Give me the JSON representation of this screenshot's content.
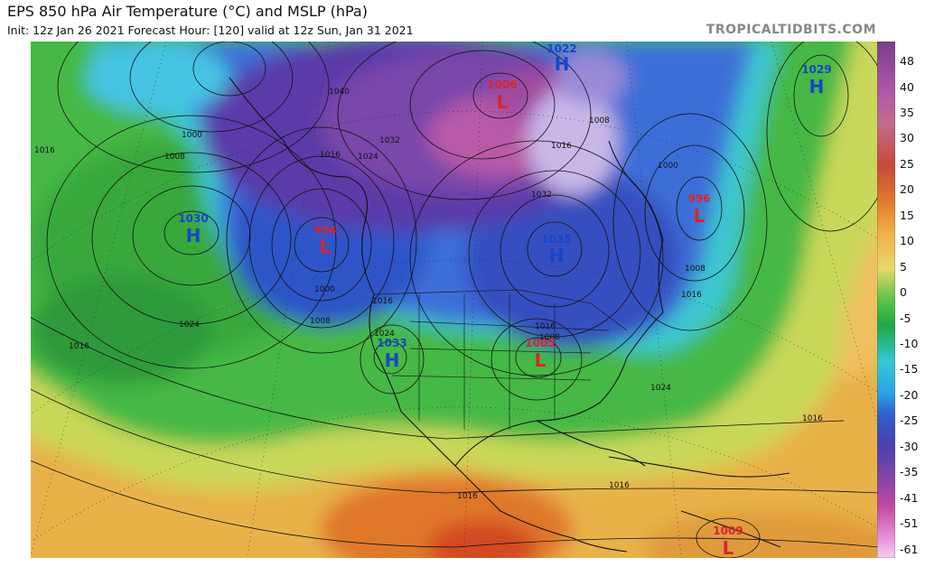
{
  "header": {
    "title": "EPS 850 hPa Air Temperature (°C) and MSLP (hPa)",
    "subtitle": "Init: 12z Jan 26 2021   Forecast Hour: [120]   valid at 12z Sun, Jan 31 2021",
    "brand": "TROPICALTIDBITS.COM"
  },
  "colorbar": {
    "unit": "°C",
    "ticks": [
      "48",
      "40",
      "35",
      "30",
      "25",
      "20",
      "15",
      "10",
      "5",
      "0",
      "-5",
      "-10",
      "-15",
      "-20",
      "-25",
      "-30",
      "-35",
      "-41",
      "-51",
      "-61"
    ],
    "colors": [
      "#8a3f8f",
      "#b05aa8",
      "#c26b8a",
      "#c84a3a",
      "#d8662c",
      "#e88b30",
      "#f2b450",
      "#f3d36a",
      "#b7d665",
      "#5cc34a",
      "#1fa846",
      "#34c2c0",
      "#2aa4e6",
      "#2d72d8",
      "#3d46b8",
      "#5a3aa6",
      "#7e45a6",
      "#a04aa0",
      "#d05aa8",
      "#eeb6e6"
    ]
  },
  "pressure_centers": [
    {
      "type": "H",
      "value": "1022",
      "color": "#1646c8"
    },
    {
      "type": "L",
      "value": "1006",
      "color": "#d7262a"
    },
    {
      "type": "H",
      "value": "1029",
      "color": "#1646c8"
    },
    {
      "type": "H",
      "value": "1030",
      "color": "#1646c8"
    },
    {
      "type": "L",
      "value": "994",
      "color": "#d7262a"
    },
    {
      "type": "H",
      "value": "1035",
      "color": "#1646c8"
    },
    {
      "type": "L",
      "value": "996",
      "color": "#d7262a"
    },
    {
      "type": "H",
      "value": "1033",
      "color": "#1646c8"
    },
    {
      "type": "L",
      "value": "1005",
      "color": "#d7262a"
    },
    {
      "type": "L",
      "value": "1009",
      "color": "#d7262a"
    }
  ],
  "isobar_labels": [
    "1016",
    "1000",
    "1008",
    "1024",
    "1016",
    "1000",
    "1008",
    "1016",
    "1040",
    "1032",
    "1024",
    "1016",
    "1016",
    "1008",
    "1000",
    "1008",
    "1016",
    "1024",
    "1016",
    "1016",
    "1016",
    "1016",
    "1008",
    "1024",
    "1032"
  ]
}
